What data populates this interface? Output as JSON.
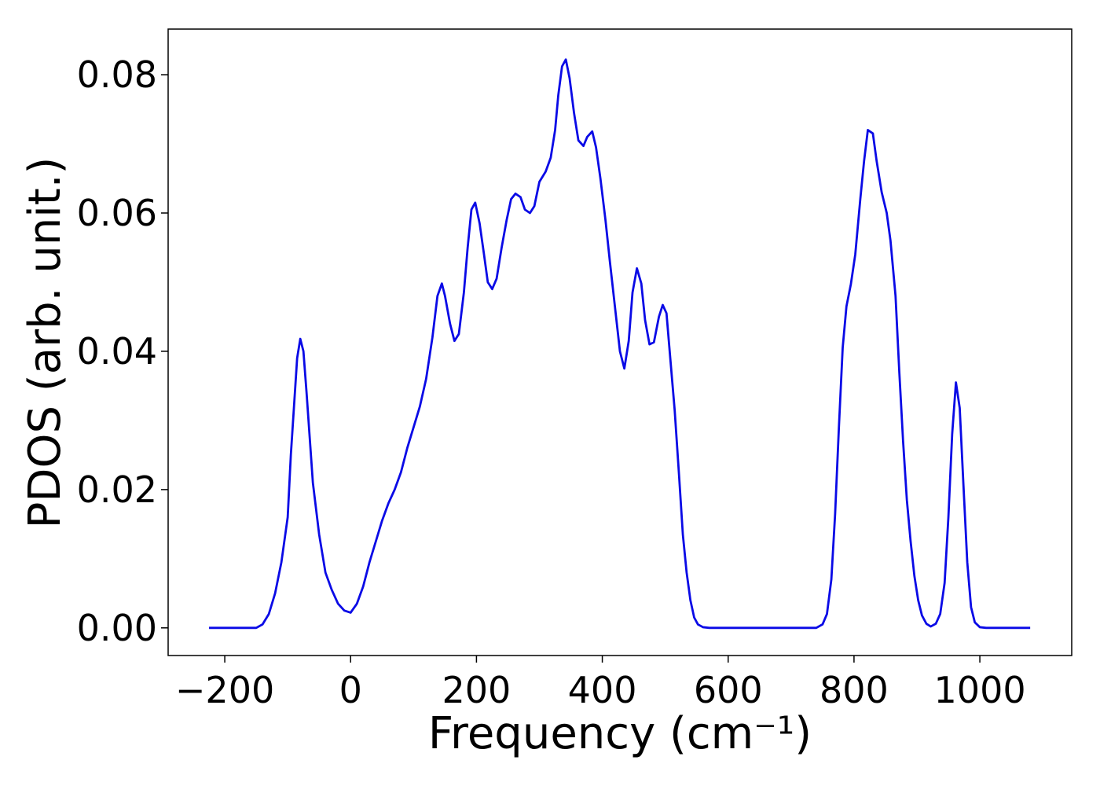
{
  "chart_data": {
    "type": "line",
    "xlabel": "Frequency (cm⁻¹)",
    "ylabel": "PDOS (arb. unit.)",
    "x": [
      -225,
      -150,
      -140,
      -130,
      -120,
      -110,
      -100,
      -95,
      -90,
      -85,
      -80,
      -75,
      -70,
      -60,
      -50,
      -40,
      -30,
      -20,
      -10,
      0,
      10,
      20,
      30,
      40,
      50,
      60,
      70,
      80,
      90,
      100,
      110,
      120,
      130,
      138,
      145,
      150,
      158,
      165,
      172,
      180,
      186,
      192,
      198,
      205,
      212,
      218,
      225,
      232,
      240,
      248,
      255,
      262,
      270,
      277,
      285,
      292,
      300,
      310,
      318,
      325,
      330,
      336,
      342,
      348,
      355,
      362,
      370,
      376,
      384,
      390,
      397,
      405,
      412,
      420,
      428,
      435,
      442,
      448,
      455,
      462,
      468,
      475,
      482,
      490,
      496,
      502,
      508,
      515,
      522,
      528,
      534,
      540,
      546,
      552,
      560,
      570,
      740,
      750,
      757,
      764,
      770,
      776,
      782,
      788,
      795,
      802,
      810,
      816,
      822,
      830,
      836,
      844,
      852,
      858,
      866,
      872,
      878,
      884,
      890,
      896,
      902,
      908,
      915,
      922,
      930,
      937,
      944,
      950,
      956,
      962,
      968,
      974,
      980,
      986,
      992,
      1000,
      1010,
      1080
    ],
    "series": [
      {
        "color": "#0a0ae6",
        "values": [
          0,
          0,
          0.0005,
          0.002,
          0.005,
          0.0095,
          0.016,
          0.025,
          0.032,
          0.039,
          0.0418,
          0.04,
          0.034,
          0.021,
          0.0135,
          0.008,
          0.0055,
          0.0035,
          0.0025,
          0.0022,
          0.0035,
          0.006,
          0.0095,
          0.0125,
          0.0155,
          0.018,
          0.02,
          0.0225,
          0.026,
          0.029,
          0.032,
          0.036,
          0.042,
          0.048,
          0.0498,
          0.048,
          0.044,
          0.0415,
          0.0425,
          0.0485,
          0.055,
          0.0605,
          0.0615,
          0.0585,
          0.054,
          0.05,
          0.049,
          0.0505,
          0.055,
          0.059,
          0.062,
          0.0628,
          0.0623,
          0.0605,
          0.06,
          0.061,
          0.0645,
          0.066,
          0.068,
          0.072,
          0.077,
          0.0812,
          0.0822,
          0.0795,
          0.0745,
          0.0705,
          0.0697,
          0.071,
          0.0718,
          0.0695,
          0.065,
          0.059,
          0.053,
          0.0465,
          0.04,
          0.0375,
          0.0415,
          0.0485,
          0.052,
          0.0498,
          0.0445,
          0.041,
          0.0413,
          0.045,
          0.0467,
          0.0455,
          0.039,
          0.0315,
          0.022,
          0.0135,
          0.008,
          0.004,
          0.0015,
          0.0005,
          0.0001,
          0,
          0,
          0.0005,
          0.002,
          0.007,
          0.0165,
          0.029,
          0.0405,
          0.0465,
          0.0497,
          0.054,
          0.062,
          0.0675,
          0.072,
          0.0715,
          0.0675,
          0.063,
          0.06,
          0.056,
          0.048,
          0.037,
          0.027,
          0.0185,
          0.0125,
          0.0075,
          0.004,
          0.0018,
          0.0006,
          0.0002,
          0.0006,
          0.002,
          0.0065,
          0.016,
          0.028,
          0.0355,
          0.0318,
          0.0205,
          0.0095,
          0.003,
          0.0008,
          0.0001,
          0,
          0
        ]
      }
    ],
    "xlim": [
      -290,
      1146
    ],
    "ylim": [
      -0.004,
      0.0866
    ],
    "xticks": [
      {
        "value": -200,
        "label": "−200"
      },
      0,
      200,
      400,
      600,
      800,
      1000
    ],
    "yticks": [
      {
        "value": 0,
        "label": "0.00"
      },
      0.02,
      0.04,
      0.06,
      0.08
    ]
  }
}
